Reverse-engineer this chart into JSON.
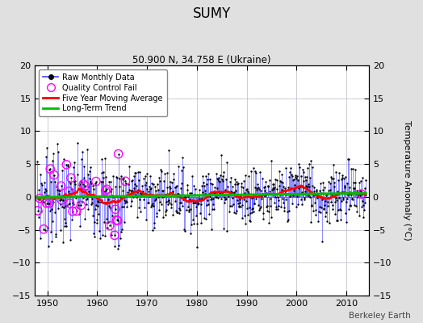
{
  "title": "SUMY",
  "subtitle": "50.900 N, 34.758 E (Ukraine)",
  "ylabel": "Temperature Anomaly (°C)",
  "watermark": "Berkeley Earth",
  "ylim": [
    -15,
    20
  ],
  "yticks": [
    -15,
    -10,
    -5,
    0,
    5,
    10,
    15,
    20
  ],
  "xticks": [
    1950,
    1960,
    1970,
    1980,
    1990,
    2000,
    2010
  ],
  "xlim": [
    1947.5,
    2014.5
  ],
  "raw_color": "#4444FF",
  "marker_color": "#000000",
  "qc_color": "#FF00FF",
  "moving_avg_color": "#FF0000",
  "trend_color": "#00BB00",
  "background_color": "#E0E0E0",
  "plot_bg_color": "#FFFFFF",
  "grid_color": "#BBBBCC"
}
